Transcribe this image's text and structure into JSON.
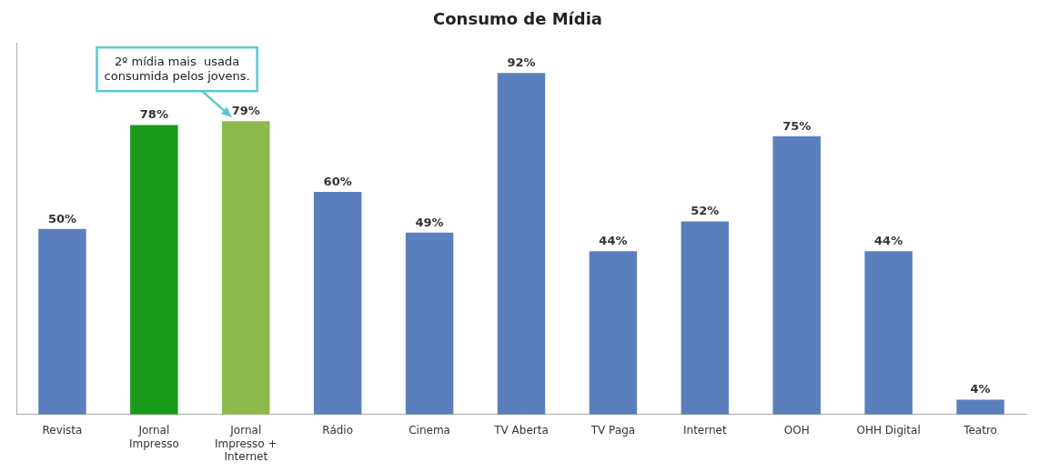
{
  "chart_data": {
    "type": "bar",
    "title": "Consumo de Mídia",
    "categories": [
      "Revista",
      "Jornal\nImpresso",
      "Jornal\nImpresso +\nInternet",
      "Rádio",
      "Cinema",
      "TV Aberta",
      "TV Paga",
      "Internet",
      "OOH",
      "OHH Digital",
      "Teatro"
    ],
    "values": [
      50,
      78,
      79,
      60,
      49,
      92,
      44,
      52,
      75,
      44,
      4
    ],
    "value_labels": [
      "50%",
      "78%",
      "79%",
      "60%",
      "49%",
      "92%",
      "44%",
      "52%",
      "75%",
      "44%",
      "4%"
    ],
    "data_labels": true,
    "colors": [
      "#5b7fbc",
      "#1a9a1a",
      "#8db84a",
      "#5b7fbc",
      "#5b7fbc",
      "#5b7fbc",
      "#5b7fbc",
      "#5b7fbc",
      "#5b7fbc",
      "#5b7fbc",
      "#5b7fbc"
    ],
    "ylim": [
      0,
      100
    ],
    "yticks": [],
    "grid": false,
    "tick_labels": "x",
    "annotations": [
      {
        "text": "2º mídia mais  usada\nconsumida pelos jovens.",
        "color": "#5bc8d0"
      }
    ]
  }
}
